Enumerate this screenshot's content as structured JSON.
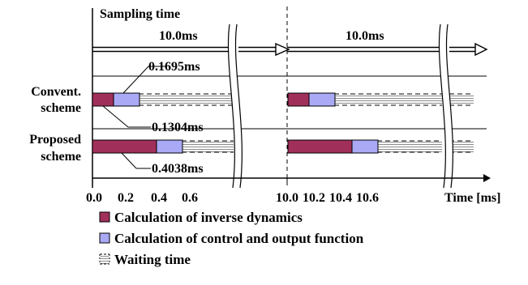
{
  "title": "Sampling time",
  "period_label_1": "10.0ms",
  "period_label_2": "10.0ms",
  "rows": {
    "conventional": {
      "label_line1": "Convent.",
      "label_line2": "scheme"
    },
    "proposed": {
      "label_line1": "Proposed",
      "label_line2": "scheme"
    }
  },
  "annotations": {
    "conv_control": "0.1695ms",
    "conv_inverse": "0.1304ms",
    "prop_inverse": "0.4038ms"
  },
  "axis": {
    "label": "Time [ms]",
    "ticks": [
      "0.0",
      "0.2",
      "0.4",
      "0.6",
      "10.0",
      "10.2",
      "10.4",
      "10.6"
    ]
  },
  "legend": [
    {
      "label": "Calculation of inverse dynamics",
      "color": "#a0305a"
    },
    {
      "label": "Calculation of control and output function",
      "color": "#a9a9f5"
    },
    {
      "label": "Waiting time",
      "color": "#bdbdbd"
    }
  ],
  "timing": {
    "sampling_period_ms": 10.0,
    "conventional": {
      "inverse_dynamics_ms": 0.1304,
      "control_output_ms": 0.1695
    },
    "proposed": {
      "inverse_dynamics_ms": 0.4038,
      "control_output_ms": 0.1695
    }
  }
}
